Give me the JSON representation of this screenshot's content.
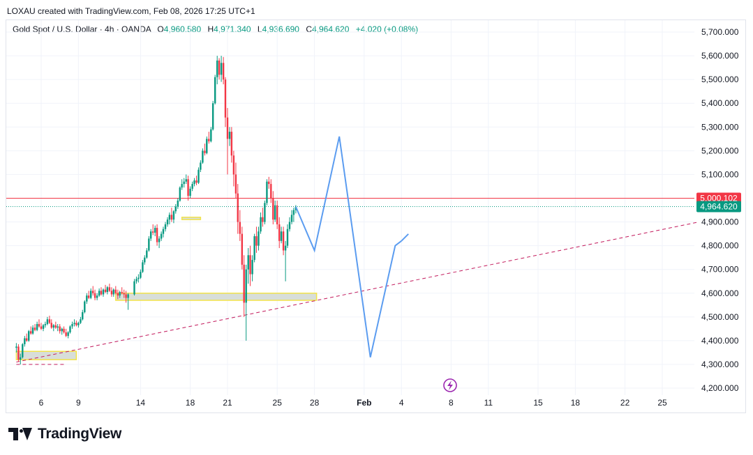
{
  "header": {
    "caption": "LOXAU created with TradingView.com, Feb 08, 2026 17:25 UTC+1"
  },
  "legend": {
    "symbol": "Gold Spot / U.S. Dollar · 4h · OANDA",
    "open_label": "O",
    "open": "4,960.580",
    "high_label": "H",
    "high": "4,971.340",
    "low_label": "L",
    "low": "4,936.690",
    "close_label": "C",
    "close": "4,964.620",
    "change": "+4.020 (+0.08%)"
  },
  "footer": {
    "brand": "TradingView",
    "logo_icon": "tradingview-logo-icon"
  },
  "colors": {
    "up": "#089981",
    "down": "#f23645",
    "projection": "#5b9cf0",
    "zone_fill": "#d8ded9",
    "zone_border": "#f2e34a"
  },
  "chart_data": {
    "type": "candlestick",
    "timeframe": "4h",
    "y_axis": {
      "min": 4150,
      "max": 5750,
      "tick_values": [
        5700,
        5600,
        5500,
        5400,
        5300,
        5200,
        5100,
        5000,
        4900,
        4800,
        4700,
        4600,
        4500,
        4400,
        4300,
        4200
      ],
      "tick_labels": [
        "5,700.000",
        "5,600.000",
        "5,500.000",
        "5,400.000",
        "5,300.000",
        "5,200.000",
        "5,100.000",
        "5,000.000",
        "4,900.000",
        "4,800.000",
        "4,700.000",
        "4,600.000",
        "4,500.000",
        "4,400.000",
        "4,300.000",
        "4,200.000"
      ]
    },
    "x_axis": {
      "tick_labels": [
        "6",
        "9",
        "14",
        "18",
        "21",
        "25",
        "28",
        "Feb",
        "4",
        "8",
        "11",
        "15",
        "18",
        "22",
        "25"
      ],
      "tick_days": [
        6,
        9,
        14,
        18,
        21,
        25,
        28,
        32,
        35,
        39,
        42,
        46,
        49,
        53,
        56
      ]
    },
    "price_tags": [
      {
        "label": "5,000.102",
        "value": 5000.102,
        "color": "#f23645"
      },
      {
        "label": "4,964.620",
        "value": 4964.62,
        "color": "#089981"
      }
    ],
    "horizontal_line": {
      "value": 5000.102,
      "color": "#f23645"
    },
    "last_price_line": {
      "value": 4964.62,
      "color": "#089981"
    },
    "candles": [
      [
        4.0,
        4370,
        4390,
        4350,
        4375
      ],
      [
        4.17,
        4375,
        4385,
        4310,
        4320
      ],
      [
        4.33,
        4320,
        4345,
        4300,
        4330
      ],
      [
        4.5,
        4330,
        4390,
        4325,
        4385
      ],
      [
        4.67,
        4385,
        4420,
        4375,
        4410
      ],
      [
        4.83,
        4410,
        4430,
        4395,
        4400
      ],
      [
        5.0,
        4400,
        4445,
        4395,
        4440
      ],
      [
        5.17,
        4440,
        4460,
        4425,
        4430
      ],
      [
        5.33,
        4430,
        4465,
        4425,
        4455
      ],
      [
        5.5,
        4455,
        4470,
        4440,
        4445
      ],
      [
        5.67,
        4445,
        4480,
        4440,
        4470
      ],
      [
        5.83,
        4470,
        4490,
        4455,
        4460
      ],
      [
        6.0,
        4460,
        4475,
        4445,
        4450
      ],
      [
        6.17,
        4450,
        4470,
        4440,
        4465
      ],
      [
        6.33,
        4465,
        4480,
        4455,
        4470
      ],
      [
        6.5,
        4470,
        4500,
        4465,
        4490
      ],
      [
        6.67,
        4490,
        4505,
        4470,
        4475
      ],
      [
        6.83,
        4475,
        4490,
        4450,
        4455
      ],
      [
        7.0,
        4455,
        4470,
        4440,
        4465
      ],
      [
        7.17,
        4465,
        4480,
        4450,
        4455
      ],
      [
        7.33,
        4455,
        4470,
        4440,
        4460
      ],
      [
        7.5,
        4460,
        4470,
        4430,
        4440
      ],
      [
        7.67,
        4440,
        4455,
        4425,
        4450
      ],
      [
        7.83,
        4450,
        4460,
        4430,
        4435
      ],
      [
        8.0,
        4435,
        4450,
        4415,
        4420
      ],
      [
        8.17,
        4420,
        4440,
        4410,
        4435
      ],
      [
        8.33,
        4435,
        4465,
        4430,
        4460
      ],
      [
        8.5,
        4460,
        4480,
        4450,
        4470
      ],
      [
        8.67,
        4470,
        4490,
        4460,
        4475
      ],
      [
        8.83,
        4475,
        4485,
        4460,
        4465
      ],
      [
        9.0,
        4465,
        4480,
        4455,
        4475
      ],
      [
        9.17,
        4475,
        4500,
        4470,
        4490
      ],
      [
        9.33,
        4490,
        4530,
        4485,
        4520
      ],
      [
        9.5,
        4520,
        4570,
        4515,
        4565
      ],
      [
        9.67,
        4565,
        4600,
        4555,
        4590
      ],
      [
        9.83,
        4590,
        4610,
        4575,
        4580
      ],
      [
        10.0,
        4580,
        4620,
        4575,
        4610
      ],
      [
        10.17,
        4610,
        4630,
        4590,
        4600
      ],
      [
        10.33,
        4600,
        4615,
        4570,
        4580
      ],
      [
        10.5,
        4580,
        4600,
        4570,
        4590
      ],
      [
        10.67,
        4590,
        4620,
        4585,
        4610
      ],
      [
        10.83,
        4610,
        4625,
        4590,
        4595
      ],
      [
        11.0,
        4595,
        4620,
        4585,
        4615
      ],
      [
        11.17,
        4615,
        4635,
        4600,
        4605
      ],
      [
        11.33,
        4605,
        4630,
        4595,
        4625
      ],
      [
        11.5,
        4625,
        4640,
        4605,
        4610
      ],
      [
        11.67,
        4610,
        4625,
        4585,
        4595
      ],
      [
        11.83,
        4595,
        4620,
        4585,
        4615
      ],
      [
        12.0,
        4615,
        4630,
        4595,
        4600
      ],
      [
        12.17,
        4600,
        4615,
        4575,
        4590
      ],
      [
        12.33,
        4590,
        4610,
        4580,
        4605
      ],
      [
        12.5,
        4605,
        4625,
        4595,
        4600
      ],
      [
        12.67,
        4600,
        4615,
        4580,
        4595
      ],
      [
        12.83,
        4595,
        4610,
        4560,
        4580
      ],
      [
        13.0,
        4580,
        4600,
        4530,
        4595
      ],
      [
        13.5,
        4595,
        4660,
        4590,
        4650
      ],
      [
        13.67,
        4650,
        4670,
        4640,
        4660
      ],
      [
        13.83,
        4660,
        4680,
        4645,
        4665
      ],
      [
        14.0,
        4665,
        4700,
        4660,
        4690
      ],
      [
        14.17,
        4690,
        4740,
        4685,
        4730
      ],
      [
        14.33,
        4730,
        4760,
        4720,
        4750
      ],
      [
        14.5,
        4750,
        4790,
        4745,
        4780
      ],
      [
        14.67,
        4780,
        4840,
        4775,
        4830
      ],
      [
        14.83,
        4830,
        4870,
        4820,
        4860
      ],
      [
        15.0,
        4860,
        4890,
        4845,
        4855
      ],
      [
        15.17,
        4855,
        4885,
        4840,
        4875
      ],
      [
        15.33,
        4875,
        4890,
        4800,
        4815
      ],
      [
        15.5,
        4815,
        4840,
        4790,
        4830
      ],
      [
        15.67,
        4830,
        4860,
        4820,
        4850
      ],
      [
        15.83,
        4850,
        4880,
        4835,
        4870
      ],
      [
        16.0,
        4870,
        4900,
        4860,
        4890
      ],
      [
        16.17,
        4890,
        4920,
        4880,
        4910
      ],
      [
        16.33,
        4910,
        4940,
        4890,
        4930
      ],
      [
        16.5,
        4930,
        4960,
        4900,
        4910
      ],
      [
        16.67,
        4910,
        4950,
        4895,
        4945
      ],
      [
        16.83,
        4945,
        4975,
        4935,
        4965
      ],
      [
        17.0,
        4965,
        5000,
        4955,
        4990
      ],
      [
        17.17,
        4990,
        5050,
        4985,
        5045
      ],
      [
        17.33,
        5045,
        5080,
        5035,
        5060
      ],
      [
        17.5,
        5060,
        5085,
        5045,
        5070
      ],
      [
        17.67,
        5070,
        5100,
        5060,
        5080
      ],
      [
        17.83,
        5080,
        5095,
        4990,
        5010
      ],
      [
        18.0,
        5010,
        5050,
        5000,
        5040
      ],
      [
        18.17,
        5040,
        5070,
        5030,
        5060
      ],
      [
        18.33,
        5060,
        5085,
        5050,
        5075
      ],
      [
        18.5,
        5075,
        5095,
        5055,
        5065
      ],
      [
        18.67,
        5065,
        5130,
        5060,
        5120
      ],
      [
        18.83,
        5120,
        5160,
        5110,
        5150
      ],
      [
        19.0,
        5150,
        5210,
        5145,
        5200
      ],
      [
        19.17,
        5200,
        5230,
        5180,
        5190
      ],
      [
        19.33,
        5190,
        5260,
        5185,
        5250
      ],
      [
        19.5,
        5250,
        5280,
        5230,
        5240
      ],
      [
        19.67,
        5240,
        5300,
        5235,
        5290
      ],
      [
        19.83,
        5290,
        5410,
        5285,
        5400
      ],
      [
        20.0,
        5400,
        5520,
        5395,
        5510
      ],
      [
        20.17,
        5510,
        5600,
        5480,
        5580
      ],
      [
        20.33,
        5580,
        5590,
        5500,
        5520
      ],
      [
        20.5,
        5520,
        5600,
        5490,
        5570
      ],
      [
        20.67,
        5570,
        5595,
        5480,
        5500
      ],
      [
        20.83,
        5500,
        5510,
        5300,
        5340
      ],
      [
        21.0,
        5340,
        5380,
        5100,
        5250
      ],
      [
        21.17,
        5250,
        5300,
        5220,
        5280
      ],
      [
        21.33,
        5280,
        5300,
        5150,
        5180
      ],
      [
        21.5,
        5180,
        5200,
        5050,
        5100
      ],
      [
        21.67,
        5100,
        5150,
        5000,
        5020
      ],
      [
        21.83,
        5020,
        5060,
        4850,
        4900
      ],
      [
        22.0,
        4900,
        4950,
        4820,
        4850
      ],
      [
        22.17,
        4850,
        4880,
        4700,
        4720
      ],
      [
        22.33,
        4720,
        4760,
        4500,
        4560
      ],
      [
        22.5,
        4560,
        4720,
        4400,
        4700
      ],
      [
        22.67,
        4700,
        4790,
        4640,
        4760
      ],
      [
        22.83,
        4760,
        4800,
        4630,
        4680
      ],
      [
        23.0,
        4680,
        4760,
        4650,
        4740
      ],
      [
        23.17,
        4740,
        4850,
        4730,
        4840
      ],
      [
        23.33,
        4840,
        4880,
        4770,
        4800
      ],
      [
        23.5,
        4800,
        4880,
        4780,
        4860
      ],
      [
        23.67,
        4860,
        4940,
        4850,
        4920
      ],
      [
        23.83,
        4920,
        4960,
        4880,
        4900
      ],
      [
        24.0,
        4900,
        4990,
        4890,
        4980
      ],
      [
        24.17,
        4980,
        5080,
        4970,
        5070
      ],
      [
        24.33,
        5070,
        5090,
        5040,
        5060
      ],
      [
        24.5,
        5060,
        5080,
        4980,
        5000
      ],
      [
        24.67,
        5000,
        5030,
        4890,
        4910
      ],
      [
        24.83,
        4910,
        4990,
        4900,
        4970
      ],
      [
        25.0,
        4970,
        4990,
        4870,
        4890
      ],
      [
        25.17,
        4890,
        4920,
        4790,
        4820
      ],
      [
        25.33,
        4820,
        4880,
        4810,
        4860
      ],
      [
        25.5,
        4860,
        4880,
        4760,
        4780
      ],
      [
        25.67,
        4780,
        4820,
        4650,
        4800
      ],
      [
        25.83,
        4800,
        4890,
        4790,
        4870
      ],
      [
        26.0,
        4870,
        4920,
        4860,
        4900
      ],
      [
        26.17,
        4900,
        4950,
        4890,
        4930
      ],
      [
        26.33,
        4930,
        4960,
        4900,
        4950
      ],
      [
        26.5,
        4950,
        4971,
        4936,
        4964
      ]
    ],
    "zones": [
      {
        "x0": 4.0,
        "x1": 8.83,
        "y0": 4320,
        "y1": 4355
      },
      {
        "x0": 12.0,
        "x1": 28.17,
        "y0": 4570,
        "y1": 4600
      },
      {
        "x0": 17.33,
        "x1": 18.83,
        "y0": 4910,
        "y1": 4920
      }
    ],
    "trendline": {
      "x0": 4.0,
      "y0": 4310,
      "x1": 42.0,
      "y1": 4718
    },
    "dashed_segment": {
      "x0": 4.0,
      "x1": 8.0,
      "y": 4300
    },
    "projection_path": [
      [
        26.5,
        4964
      ],
      [
        28.0,
        4780
      ],
      [
        30.0,
        5260
      ],
      [
        32.5,
        4330
      ],
      [
        34.5,
        4800
      ],
      [
        35.0,
        4820
      ]
    ]
  }
}
